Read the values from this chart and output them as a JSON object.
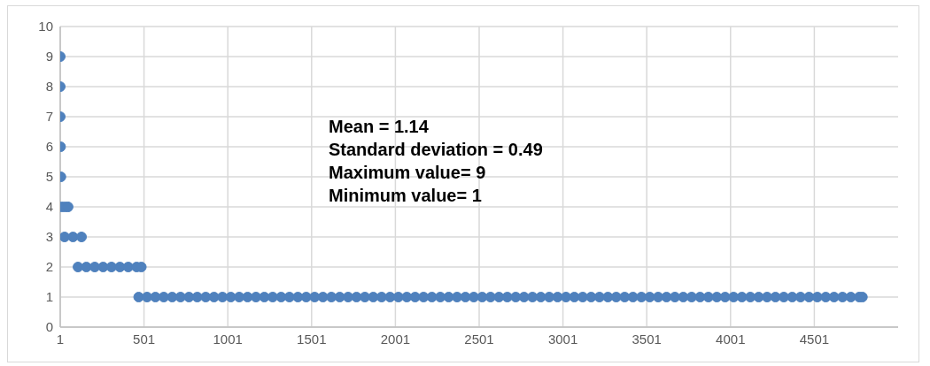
{
  "chart_data": {
    "type": "scatter",
    "color": "#4f81bd",
    "marker": "circle",
    "grid": true,
    "x": [
      1,
      1,
      1,
      3,
      5,
      10,
      30,
      48,
      27,
      77,
      128,
      107,
      157,
      207,
      257,
      307,
      357,
      407,
      457,
      485,
      469,
      519,
      569,
      619,
      669,
      719,
      769,
      819,
      869,
      919,
      969,
      1019,
      1069,
      1119,
      1169,
      1219,
      1269,
      1319,
      1369,
      1419,
      1469,
      1519,
      1569,
      1619,
      1669,
      1719,
      1769,
      1819,
      1869,
      1919,
      1969,
      2019,
      2069,
      2119,
      2169,
      2219,
      2269,
      2319,
      2369,
      2419,
      2469,
      2519,
      2569,
      2619,
      2669,
      2719,
      2769,
      2819,
      2869,
      2919,
      2969,
      3019,
      3069,
      3119,
      3169,
      3219,
      3269,
      3319,
      3369,
      3419,
      3469,
      3519,
      3569,
      3619,
      3669,
      3719,
      3769,
      3819,
      3869,
      3919,
      3969,
      4019,
      4069,
      4119,
      4169,
      4219,
      4269,
      4319,
      4369,
      4419,
      4469,
      4519,
      4569,
      4619,
      4669,
      4719,
      4769,
      4788
    ],
    "values": [
      9,
      8,
      7,
      6,
      5,
      4,
      4,
      4,
      3,
      3,
      3,
      2,
      2,
      2,
      2,
      2,
      2,
      2,
      2,
      2,
      1,
      1,
      1,
      1,
      1,
      1,
      1,
      1,
      1,
      1,
      1,
      1,
      1,
      1,
      1,
      1,
      1,
      1,
      1,
      1,
      1,
      1,
      1,
      1,
      1,
      1,
      1,
      1,
      1,
      1,
      1,
      1,
      1,
      1,
      1,
      1,
      1,
      1,
      1,
      1,
      1,
      1,
      1,
      1,
      1,
      1,
      1,
      1,
      1,
      1,
      1,
      1,
      1,
      1,
      1,
      1,
      1,
      1,
      1,
      1,
      1,
      1,
      1,
      1,
      1,
      1,
      1,
      1,
      1,
      1,
      1,
      1,
      1,
      1,
      1,
      1,
      1,
      1,
      1,
      1,
      1,
      1,
      1,
      1,
      1,
      1,
      1,
      1
    ],
    "xlim": [
      1,
      5001
    ],
    "xticks": [
      1,
      501,
      1001,
      1501,
      2001,
      2501,
      3001,
      3501,
      4001,
      4501
    ],
    "ylim": [
      0,
      10
    ],
    "yticks": [
      0,
      1,
      2,
      3,
      4,
      5,
      6,
      7,
      8,
      9,
      10
    ],
    "annotations": [
      "Mean = 1.14",
      "Standard deviation = 0.49",
      "Maximum value= 9",
      "Minimum value= 1"
    ]
  }
}
